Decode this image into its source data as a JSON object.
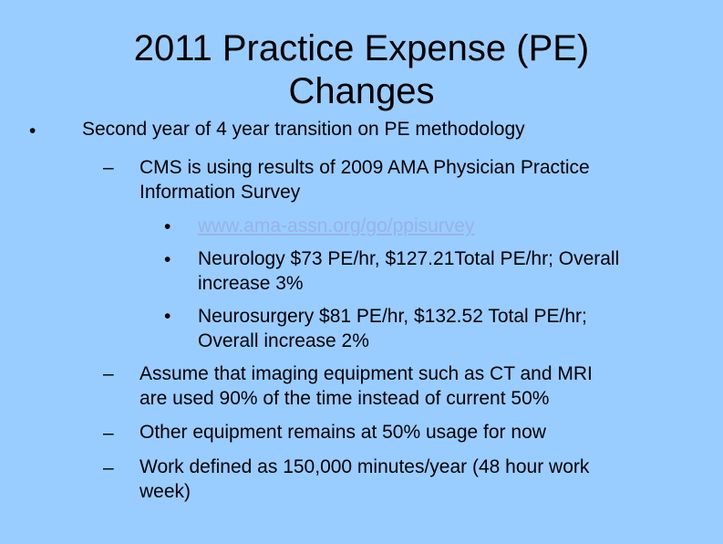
{
  "slide": {
    "title_line1": "2011 Practice Expense (PE)",
    "title_line2": "Changes",
    "level1": {
      "marker": "•",
      "text": "Second year of 4 year transition on PE methodology"
    },
    "level2": [
      {
        "marker": "–",
        "line1": "CMS is using results of 2009 AMA Physician Practice",
        "line2": "Information Survey"
      },
      {
        "marker": "–",
        "line1": "Assume that imaging equipment such as CT and MRI",
        "line2": "are used 90% of the time instead of current 50%"
      },
      {
        "marker": "–",
        "line1": "Other equipment remains at 50% usage for now",
        "line2": ""
      },
      {
        "marker": "–",
        "line1": "Work defined as 150,000 minutes/year (48 hour work",
        "line2": "week)"
      }
    ],
    "level3": [
      {
        "marker": "•",
        "line1": "www.ama-assn.org/go/ppisurvey",
        "line2": ""
      },
      {
        "marker": "•",
        "line1": "Neurology $73 PE/hr, $127.21Total PE/hr; Overall",
        "line2": "increase 3%"
      },
      {
        "marker": "•",
        "line1": "Neurosurgery $81 PE/hr, $132.52 Total PE/hr;",
        "line2": "Overall increase 2%"
      }
    ]
  }
}
